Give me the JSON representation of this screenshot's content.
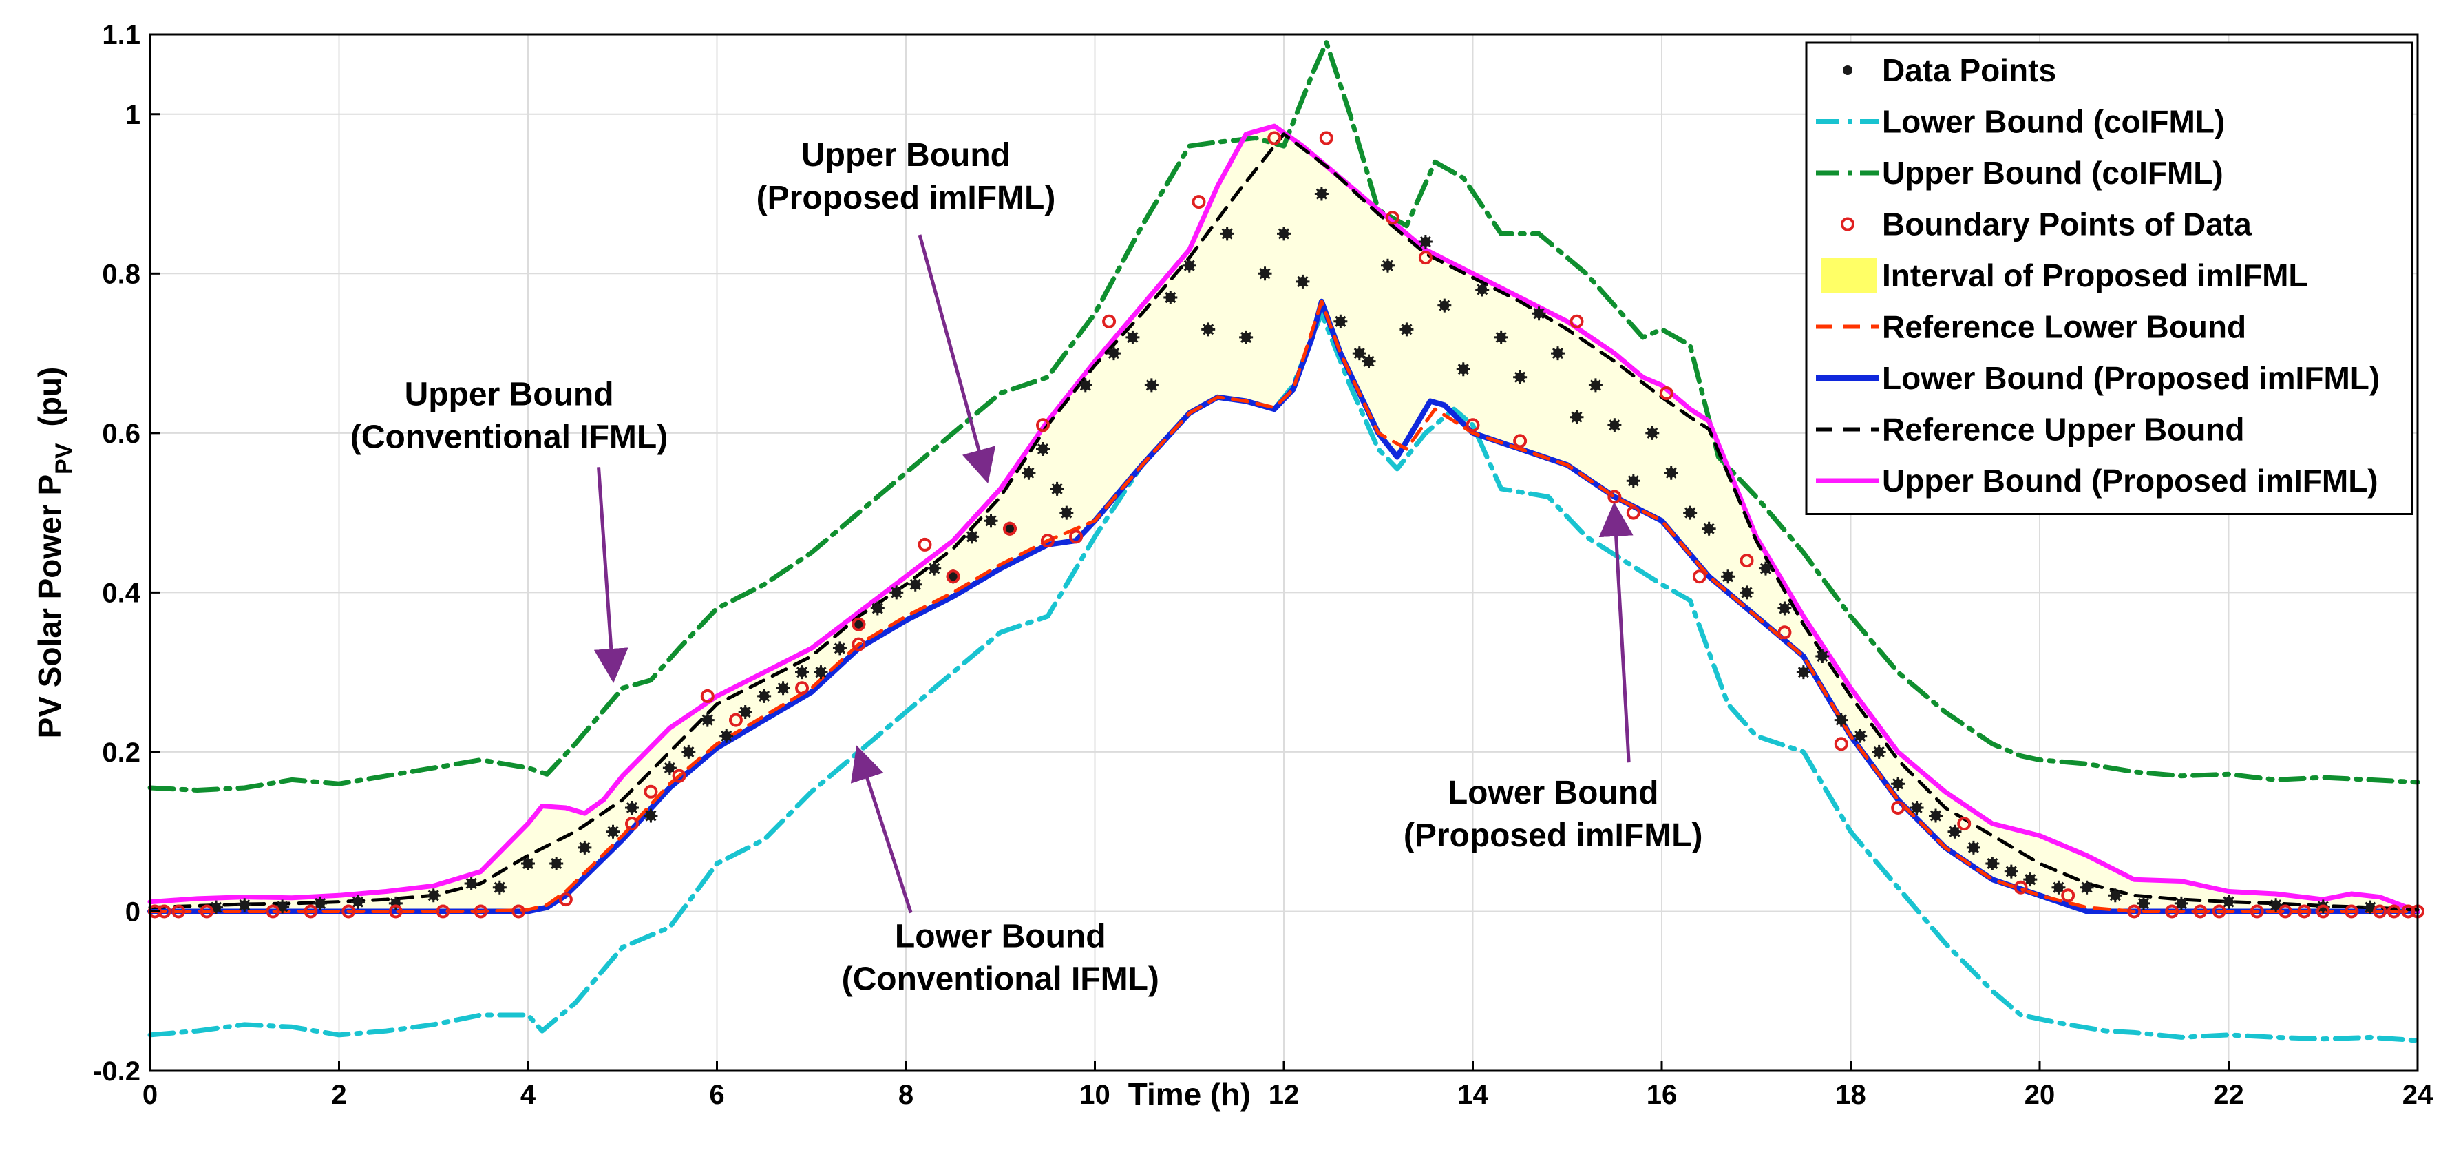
{
  "chart_data": {
    "type": "line",
    "xlabel": "Time (h)",
    "ylabel": "PV Solar Power P",
    "ylabel_sub": "PV",
    "ylabel_unit": "(pu)",
    "xlim": [
      0,
      24
    ],
    "ylim": [
      -0.2,
      1.1
    ],
    "xticks": [
      0,
      2,
      4,
      6,
      8,
      10,
      12,
      14,
      16,
      18,
      20,
      22,
      24
    ],
    "yticks": [
      -0.2,
      0,
      0.2,
      0.4,
      0.6,
      0.8,
      1,
      1.1
    ],
    "ytick_labels": [
      "-0.2",
      "0",
      "0.2",
      "0.4",
      "0.6",
      "0.8",
      "1",
      "1.1"
    ],
    "grid": true,
    "legend_position": "top-right",
    "legend": [
      "Data Points",
      "Lower Bound (coIFML)",
      "Upper Bound (coIFML)",
      "Boundary Points of Data",
      "Interval of Proposed imIFML",
      "Reference Lower Bound",
      "Lower Bound (Proposed imIFML)",
      "Reference Upper Bound",
      "Upper Bound (Proposed imIFML)"
    ],
    "colors": {
      "data_points": "#1a1a1a",
      "lower_coifml": "#19c3d0",
      "upper_coifml": "#0f8f2f",
      "boundary_points": "#e02020",
      "interval_fill": "#ffffe0",
      "interval_legend": "#ffff66",
      "ref_lower": "#ff3300",
      "lower_proposed": "#1028dc",
      "ref_upper": "#000000",
      "upper_proposed": "#ff19ff",
      "arrow": "#7a2a8a"
    },
    "annotations": [
      {
        "lines": [
          "Upper Bound",
          "(Proposed imIFML)"
        ],
        "text_at": [
          8.0,
          0.935
        ],
        "arrow_to": [
          8.85,
          0.545
        ]
      },
      {
        "lines": [
          "Upper Bound",
          "(Conventional IFML)"
        ],
        "text_at": [
          3.8,
          0.635
        ],
        "arrow_to": [
          4.9,
          0.295
        ]
      },
      {
        "lines": [
          "Lower Bound",
          "(Conventional IFML)"
        ],
        "text_at": [
          9.0,
          -0.045
        ],
        "arrow_to": [
          7.5,
          0.2
        ]
      },
      {
        "lines": [
          "Lower Bound",
          "(Proposed imIFML)"
        ],
        "text_at": [
          14.85,
          0.135
        ],
        "arrow_to": [
          15.5,
          0.505
        ]
      }
    ],
    "series": [
      {
        "name": "Upper Bound (Proposed imIFML)",
        "x": [
          0,
          0.5,
          1,
          1.5,
          2,
          2.5,
          3,
          3.5,
          4,
          4.15,
          4.4,
          4.6,
          4.8,
          5,
          5.5,
          6,
          6.5,
          7,
          7.5,
          8,
          8.5,
          9,
          9.5,
          10,
          10.5,
          11,
          11.3,
          11.6,
          11.9,
          12.2,
          12.5,
          13,
          13.5,
          14,
          14.5,
          15,
          15.5,
          15.8,
          16,
          16.3,
          16.5,
          17,
          17.5,
          18,
          18.5,
          19,
          19.5,
          20,
          20.5,
          21,
          21.5,
          22,
          22.5,
          23,
          23.3,
          23.6,
          24
        ],
        "values": [
          0.012,
          0.016,
          0.018,
          0.017,
          0.02,
          0.025,
          0.032,
          0.05,
          0.11,
          0.132,
          0.13,
          0.123,
          0.14,
          0.17,
          0.23,
          0.27,
          0.3,
          0.33,
          0.375,
          0.42,
          0.465,
          0.53,
          0.615,
          0.69,
          0.76,
          0.83,
          0.91,
          0.975,
          0.985,
          0.96,
          0.93,
          0.88,
          0.83,
          0.8,
          0.77,
          0.74,
          0.7,
          0.67,
          0.66,
          0.63,
          0.615,
          0.47,
          0.37,
          0.28,
          0.2,
          0.15,
          0.11,
          0.095,
          0.07,
          0.04,
          0.038,
          0.025,
          0.022,
          0.015,
          0.022,
          0.018,
          0.0
        ]
      },
      {
        "name": "Reference Upper Bound",
        "x": [
          0,
          0.5,
          1,
          1.5,
          2,
          2.5,
          3,
          3.5,
          4,
          4.5,
          5,
          5.5,
          6,
          6.5,
          7,
          7.5,
          8,
          8.5,
          9,
          9.5,
          10,
          10.5,
          11,
          11.5,
          12,
          12.5,
          13,
          13.5,
          14,
          14.5,
          15,
          15.5,
          16,
          16.3,
          16.5,
          17,
          17.5,
          18,
          18.5,
          19,
          19.5,
          20,
          20.5,
          21,
          21.5,
          22,
          22.5,
          23,
          23.5,
          24
        ],
        "values": [
          0.005,
          0.007,
          0.009,
          0.01,
          0.012,
          0.015,
          0.02,
          0.035,
          0.07,
          0.1,
          0.14,
          0.2,
          0.26,
          0.29,
          0.32,
          0.37,
          0.41,
          0.455,
          0.52,
          0.61,
          0.685,
          0.75,
          0.82,
          0.9,
          0.975,
          0.93,
          0.875,
          0.825,
          0.795,
          0.765,
          0.73,
          0.69,
          0.645,
          0.62,
          0.605,
          0.465,
          0.36,
          0.27,
          0.19,
          0.13,
          0.095,
          0.06,
          0.035,
          0.02,
          0.015,
          0.012,
          0.01,
          0.007,
          0.005,
          0.002
        ]
      },
      {
        "name": "Upper Bound (coIFML)",
        "x": [
          0,
          0.5,
          1,
          1.5,
          2,
          2.5,
          3,
          3.5,
          4,
          4.2,
          4.5,
          5,
          5.3,
          5.6,
          6,
          6.5,
          7,
          7.5,
          8,
          8.5,
          9,
          9.5,
          10,
          10.5,
          11,
          11.3,
          11.7,
          12,
          12.3,
          12.45,
          12.7,
          13,
          13.3,
          13.6,
          13.9,
          14.3,
          14.7,
          15.2,
          15.5,
          15.8,
          16,
          16.3,
          16.6,
          17,
          17.5,
          18,
          18.5,
          19,
          19.5,
          19.8,
          20,
          20.5,
          21,
          21.5,
          22,
          22.5,
          23,
          23.5,
          24
        ],
        "values": [
          0.155,
          0.152,
          0.155,
          0.165,
          0.16,
          0.17,
          0.18,
          0.19,
          0.18,
          0.172,
          0.21,
          0.28,
          0.29,
          0.33,
          0.38,
          0.41,
          0.45,
          0.5,
          0.55,
          0.6,
          0.65,
          0.67,
          0.75,
          0.86,
          0.96,
          0.965,
          0.97,
          0.96,
          1.05,
          1.09,
          1.0,
          0.88,
          0.86,
          0.94,
          0.92,
          0.85,
          0.85,
          0.8,
          0.76,
          0.72,
          0.73,
          0.71,
          0.57,
          0.52,
          0.45,
          0.37,
          0.3,
          0.25,
          0.21,
          0.195,
          0.19,
          0.185,
          0.175,
          0.17,
          0.172,
          0.165,
          0.168,
          0.165,
          0.162
        ]
      },
      {
        "name": "Lower Bound (Proposed imIFML)",
        "x": [
          0,
          1,
          2,
          3,
          3.5,
          4,
          4.2,
          4.4,
          5,
          5.5,
          6,
          6.5,
          7,
          7.5,
          8,
          8.5,
          9,
          9.5,
          9.8,
          10,
          10.5,
          11,
          11.3,
          11.6,
          11.75,
          11.9,
          12.1,
          12.3,
          12.4,
          12.6,
          13,
          13.2,
          13.4,
          13.55,
          13.7,
          14,
          14.5,
          15,
          15.5,
          16,
          16.5,
          17,
          17.5,
          18,
          18.5,
          19,
          19.5,
          20,
          20.5,
          21,
          22,
          23,
          24
        ],
        "values": [
          0,
          0,
          0,
          0,
          0,
          0.0,
          0.005,
          0.02,
          0.09,
          0.155,
          0.205,
          0.24,
          0.275,
          0.33,
          0.365,
          0.395,
          0.43,
          0.46,
          0.465,
          0.49,
          0.56,
          0.625,
          0.645,
          0.64,
          0.635,
          0.63,
          0.655,
          0.72,
          0.765,
          0.7,
          0.6,
          0.57,
          0.61,
          0.64,
          0.635,
          0.6,
          0.58,
          0.56,
          0.52,
          0.49,
          0.42,
          0.37,
          0.32,
          0.22,
          0.14,
          0.08,
          0.04,
          0.02,
          0.0,
          0,
          0,
          0,
          0
        ]
      },
      {
        "name": "Reference Lower Bound",
        "x": [
          0,
          1,
          2,
          3,
          3.5,
          4,
          4.2,
          4.4,
          5,
          5.5,
          6,
          6.5,
          7,
          7.5,
          8,
          8.5,
          9,
          9.5,
          10,
          10.5,
          11,
          11.3,
          11.6,
          11.9,
          12.1,
          12.4,
          12.6,
          13,
          13.3,
          13.6,
          14,
          14.5,
          15,
          15.5,
          16,
          16.5,
          17,
          17.5,
          18,
          18.5,
          19,
          19.5,
          20,
          20.5,
          21,
          22,
          23,
          24
        ],
        "values": [
          0,
          0,
          0,
          0,
          0,
          0.002,
          0.008,
          0.025,
          0.095,
          0.16,
          0.21,
          0.245,
          0.28,
          0.335,
          0.37,
          0.4,
          0.435,
          0.465,
          0.49,
          0.56,
          0.625,
          0.645,
          0.64,
          0.632,
          0.655,
          0.765,
          0.7,
          0.6,
          0.58,
          0.63,
          0.6,
          0.58,
          0.56,
          0.52,
          0.49,
          0.42,
          0.37,
          0.32,
          0.22,
          0.14,
          0.08,
          0.04,
          0.02,
          0.005,
          0,
          0,
          0,
          0
        ]
      },
      {
        "name": "Lower Bound (coIFML)",
        "x": [
          0,
          0.5,
          1,
          1.5,
          2,
          2.5,
          3,
          3.5,
          4,
          4.15,
          4.5,
          5,
          5.5,
          6,
          6.5,
          7,
          7.5,
          8,
          8.5,
          9,
          9.5,
          10,
          10.5,
          11,
          11.3,
          11.6,
          11.9,
          12.1,
          12.4,
          12.7,
          13,
          13.2,
          13.5,
          13.8,
          14,
          14.3,
          14.8,
          15.2,
          15.6,
          16,
          16.3,
          16.7,
          17,
          17.5,
          18,
          18.5,
          19,
          19.5,
          19.8,
          20.2,
          20.7,
          21,
          21.5,
          22,
          22.5,
          23,
          23.5,
          24
        ],
        "values": [
          -0.155,
          -0.15,
          -0.142,
          -0.145,
          -0.155,
          -0.15,
          -0.142,
          -0.13,
          -0.13,
          -0.15,
          -0.115,
          -0.045,
          -0.02,
          0.06,
          0.09,
          0.15,
          0.2,
          0.25,
          0.3,
          0.35,
          0.37,
          0.47,
          0.56,
          0.625,
          0.645,
          0.64,
          0.63,
          0.66,
          0.75,
          0.66,
          0.58,
          0.555,
          0.6,
          0.63,
          0.61,
          0.53,
          0.52,
          0.47,
          0.44,
          0.41,
          0.39,
          0.26,
          0.22,
          0.2,
          0.1,
          0.03,
          -0.04,
          -0.1,
          -0.13,
          -0.14,
          -0.15,
          -0.152,
          -0.158,
          -0.155,
          -0.158,
          -0.16,
          -0.158,
          -0.162
        ]
      }
    ],
    "data_points": [
      [
        0.7,
        0.005
      ],
      [
        1.0,
        0.008
      ],
      [
        1.4,
        0.006
      ],
      [
        1.8,
        0.01
      ],
      [
        2.2,
        0.012
      ],
      [
        2.6,
        0.01
      ],
      [
        3.0,
        0.02
      ],
      [
        3.4,
        0.035
      ],
      [
        3.7,
        0.03
      ],
      [
        4.0,
        0.06
      ],
      [
        4.3,
        0.06
      ],
      [
        4.6,
        0.08
      ],
      [
        4.9,
        0.1
      ],
      [
        5.1,
        0.13
      ],
      [
        5.3,
        0.12
      ],
      [
        5.5,
        0.18
      ],
      [
        5.7,
        0.2
      ],
      [
        5.9,
        0.24
      ],
      [
        6.1,
        0.22
      ],
      [
        6.3,
        0.25
      ],
      [
        6.5,
        0.27
      ],
      [
        6.7,
        0.28
      ],
      [
        6.9,
        0.3
      ],
      [
        7.1,
        0.3
      ],
      [
        7.3,
        0.33
      ],
      [
        7.5,
        0.36
      ],
      [
        7.7,
        0.38
      ],
      [
        7.9,
        0.4
      ],
      [
        8.1,
        0.41
      ],
      [
        8.3,
        0.43
      ],
      [
        8.5,
        0.42
      ],
      [
        8.7,
        0.47
      ],
      [
        8.9,
        0.49
      ],
      [
        9.1,
        0.48
      ],
      [
        9.3,
        0.55
      ],
      [
        9.45,
        0.58
      ],
      [
        9.6,
        0.53
      ],
      [
        9.7,
        0.5
      ],
      [
        9.9,
        0.66
      ],
      [
        10.2,
        0.7
      ],
      [
        10.4,
        0.72
      ],
      [
        10.6,
        0.66
      ],
      [
        10.8,
        0.77
      ],
      [
        11.0,
        0.81
      ],
      [
        11.2,
        0.73
      ],
      [
        11.4,
        0.85
      ],
      [
        11.6,
        0.72
      ],
      [
        11.8,
        0.8
      ],
      [
        12.0,
        0.85
      ],
      [
        12.2,
        0.79
      ],
      [
        12.4,
        0.9
      ],
      [
        12.6,
        0.74
      ],
      [
        12.8,
        0.7
      ],
      [
        12.9,
        0.69
      ],
      [
        13.1,
        0.81
      ],
      [
        13.3,
        0.73
      ],
      [
        13.5,
        0.84
      ],
      [
        13.7,
        0.76
      ],
      [
        13.9,
        0.68
      ],
      [
        14.1,
        0.78
      ],
      [
        14.3,
        0.72
      ],
      [
        14.5,
        0.67
      ],
      [
        14.7,
        0.75
      ],
      [
        14.9,
        0.7
      ],
      [
        15.1,
        0.62
      ],
      [
        15.3,
        0.66
      ],
      [
        15.5,
        0.61
      ],
      [
        15.7,
        0.54
      ],
      [
        15.9,
        0.6
      ],
      [
        16.1,
        0.55
      ],
      [
        16.3,
        0.5
      ],
      [
        16.5,
        0.48
      ],
      [
        16.7,
        0.42
      ],
      [
        16.9,
        0.4
      ],
      [
        17.1,
        0.43
      ],
      [
        17.3,
        0.38
      ],
      [
        17.5,
        0.3
      ],
      [
        17.7,
        0.32
      ],
      [
        17.9,
        0.24
      ],
      [
        18.1,
        0.22
      ],
      [
        18.3,
        0.2
      ],
      [
        18.5,
        0.16
      ],
      [
        18.7,
        0.13
      ],
      [
        18.9,
        0.12
      ],
      [
        19.1,
        0.1
      ],
      [
        19.3,
        0.08
      ],
      [
        19.5,
        0.06
      ],
      [
        19.7,
        0.05
      ],
      [
        19.9,
        0.04
      ],
      [
        20.2,
        0.03
      ],
      [
        20.5,
        0.03
      ],
      [
        20.8,
        0.02
      ],
      [
        21.1,
        0.01
      ],
      [
        21.5,
        0.01
      ],
      [
        22.0,
        0.012
      ],
      [
        22.5,
        0.008
      ],
      [
        23.0,
        0.006
      ],
      [
        23.5,
        0.005
      ]
    ],
    "boundary_points": [
      [
        0.05,
        0.0
      ],
      [
        0.15,
        0.0
      ],
      [
        0.3,
        0.0
      ],
      [
        0.6,
        0.0
      ],
      [
        1.3,
        0.0
      ],
      [
        1.7,
        0.0
      ],
      [
        2.1,
        0.0
      ],
      [
        2.6,
        0.0
      ],
      [
        3.1,
        0.0
      ],
      [
        3.5,
        0.0
      ],
      [
        3.9,
        0.0
      ],
      [
        4.4,
        0.015
      ],
      [
        5.1,
        0.11
      ],
      [
        5.3,
        0.15
      ],
      [
        5.6,
        0.17
      ],
      [
        5.9,
        0.27
      ],
      [
        6.2,
        0.24
      ],
      [
        6.9,
        0.28
      ],
      [
        7.5,
        0.36
      ],
      [
        7.5,
        0.335
      ],
      [
        8.2,
        0.46
      ],
      [
        8.5,
        0.42
      ],
      [
        9.1,
        0.48
      ],
      [
        9.45,
        0.61
      ],
      [
        9.5,
        0.465
      ],
      [
        9.8,
        0.47
      ],
      [
        10.15,
        0.74
      ],
      [
        11.1,
        0.89
      ],
      [
        11.9,
        0.97
      ],
      [
        12.45,
        0.97
      ],
      [
        13.15,
        0.87
      ],
      [
        13.5,
        0.82
      ],
      [
        14.0,
        0.61
      ],
      [
        14.5,
        0.59
      ],
      [
        15.1,
        0.74
      ],
      [
        15.5,
        0.52
      ],
      [
        15.7,
        0.5
      ],
      [
        16.05,
        0.65
      ],
      [
        16.4,
        0.42
      ],
      [
        16.9,
        0.44
      ],
      [
        17.3,
        0.35
      ],
      [
        17.9,
        0.21
      ],
      [
        18.5,
        0.13
      ],
      [
        19.2,
        0.11
      ],
      [
        19.8,
        0.03
      ],
      [
        20.3,
        0.02
      ],
      [
        21.0,
        0.0
      ],
      [
        21.4,
        0.0
      ],
      [
        21.7,
        0.0
      ],
      [
        21.9,
        0.0
      ],
      [
        22.3,
        0.0
      ],
      [
        22.6,
        0.0
      ],
      [
        22.8,
        0.0
      ],
      [
        23.0,
        0.0
      ],
      [
        23.3,
        0.0
      ],
      [
        23.6,
        0.0
      ],
      [
        23.75,
        0.0
      ],
      [
        23.9,
        0.0
      ],
      [
        24.0,
        0.0
      ]
    ]
  }
}
